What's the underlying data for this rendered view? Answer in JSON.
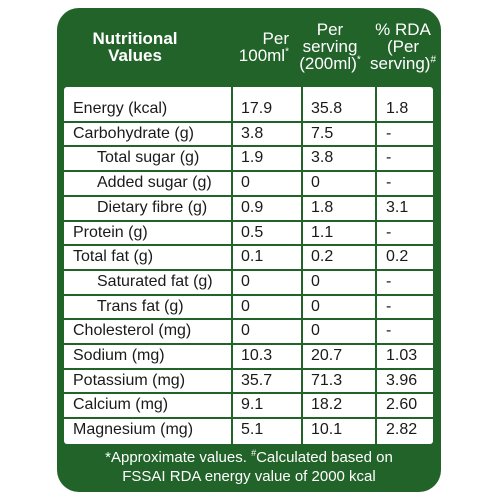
{
  "header": {
    "col1": [
      "Nutritional",
      "Values"
    ],
    "col2": [
      "Per",
      "100ml"
    ],
    "col2_mark": "*",
    "col3": [
      "Per",
      "serving",
      "(200ml)"
    ],
    "col3_mark": "*",
    "col4": [
      "% RDA",
      "(Per",
      "serving)"
    ],
    "col4_mark": "#"
  },
  "rows": [
    {
      "name": "Energy (kcal)",
      "indent": false,
      "per100": "17.9",
      "perServing": "35.8",
      "rda": "1.8"
    },
    {
      "name": "Carbohydrate (g)",
      "indent": false,
      "per100": "3.8",
      "perServing": "7.5",
      "rda": "-"
    },
    {
      "name": "Total sugar (g)",
      "indent": true,
      "per100": "1.9",
      "perServing": "3.8",
      "rda": "-"
    },
    {
      "name": "Added sugar (g)",
      "indent": true,
      "per100": "0",
      "perServing": "0",
      "rda": "-"
    },
    {
      "name": "Dietary fibre (g)",
      "indent": true,
      "per100": "0.9",
      "perServing": "1.8",
      "rda": "3.1"
    },
    {
      "name": "Protein (g)",
      "indent": false,
      "per100": "0.5",
      "perServing": "1.1",
      "rda": "-"
    },
    {
      "name": "Total fat (g)",
      "indent": false,
      "per100": "0.1",
      "perServing": "0.2",
      "rda": "0.2"
    },
    {
      "name": "Saturated fat (g)",
      "indent": true,
      "per100": "0",
      "perServing": "0",
      "rda": "-"
    },
    {
      "name": "Trans fat (g)",
      "indent": true,
      "per100": "0",
      "perServing": "0",
      "rda": "-"
    },
    {
      "name": "Cholesterol (mg)",
      "indent": false,
      "per100": "0",
      "perServing": "0",
      "rda": "-"
    },
    {
      "name": "Sodium (mg)",
      "indent": false,
      "per100": "10.3",
      "perServing": "20.7",
      "rda": "1.03"
    },
    {
      "name": "Potassium (mg)",
      "indent": false,
      "per100": "35.7",
      "perServing": "71.3",
      "rda": "3.96"
    },
    {
      "name": "Calcium (mg)",
      "indent": false,
      "per100": "9.1",
      "perServing": "18.2",
      "rda": "2.60"
    },
    {
      "name": "Magnesium (mg)",
      "indent": false,
      "per100": "5.1",
      "perServing": "10.1",
      "rda": "2.82"
    }
  ],
  "footnote": {
    "part1": "*Approximate values. ",
    "mark": "#",
    "part2": "Calculated based on",
    "line2": "FSSAI RDA energy value of 2000 kcal"
  },
  "colors": {
    "panel_green": "#22632a",
    "table_bg": "#ffffff",
    "text_dark": "#1a1a1a",
    "header_text": "#ffffff"
  }
}
